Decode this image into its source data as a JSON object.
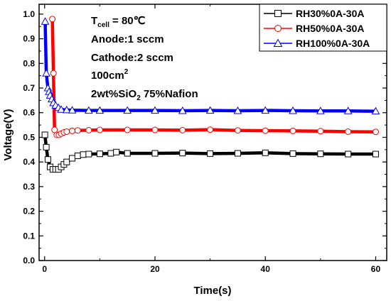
{
  "chart_data": {
    "type": "line",
    "xlabel": "Time(s)",
    "ylabel": "Voltage(V)",
    "xlim": [
      -1,
      62
    ],
    "ylim": [
      0.0,
      1.04
    ],
    "x_ticks": [
      "0",
      "20",
      "40",
      "60"
    ],
    "y_ticks": [
      "0.0",
      "0.1",
      "0.2",
      "0.3",
      "0.4",
      "0.5",
      "0.6",
      "0.7",
      "0.8",
      "0.9",
      "1.0"
    ],
    "grid": false,
    "legend_position": "top-right",
    "annotations": {
      "line1_main": "T",
      "line1_sub": "cell",
      "line1_rest": " = 80℃",
      "line2": "Anode:1 sccm",
      "line3": "Cathode:2 sccm",
      "line4_main": "100cm",
      "line4_sup": "2",
      "line5_a": "2wt%SiO",
      "line5_sub": "2",
      "line5_b": " 75%Nafion"
    },
    "series": [
      {
        "name": "RH30%0A-30A",
        "color": "#000000",
        "marker": "square",
        "x": [
          0.05,
          0.3,
          0.6,
          1.0,
          1.5,
          2.0,
          2.5,
          3.0,
          3.5,
          4.0,
          5.0,
          6.0,
          7.0,
          8.0,
          10.0,
          12.0,
          13.0,
          15.0,
          20.0,
          25.0,
          30.0,
          35.0,
          40.0,
          45.0,
          50.0,
          55.0,
          60.0
        ],
        "y": [
          0.51,
          0.46,
          0.41,
          0.38,
          0.37,
          0.37,
          0.37,
          0.38,
          0.39,
          0.4,
          0.415,
          0.425,
          0.43,
          0.432,
          0.433,
          0.435,
          0.44,
          0.435,
          0.435,
          0.436,
          0.434,
          0.435,
          0.437,
          0.434,
          0.433,
          0.432,
          0.432
        ]
      },
      {
        "name": "RH50%0A-30A",
        "color": "#ff0000",
        "marker": "circle",
        "x": [
          1.4,
          1.6,
          1.8,
          2.2,
          2.6,
          3.0,
          3.5,
          4.0,
          5.0,
          6.0,
          8.0,
          10.0,
          15.0,
          20.0,
          25.0,
          30.0,
          35.0,
          40.0,
          45.0,
          50.0,
          55.0,
          60.0
        ],
        "y": [
          0.98,
          0.76,
          0.53,
          0.51,
          0.51,
          0.515,
          0.52,
          0.523,
          0.526,
          0.528,
          0.529,
          0.53,
          0.53,
          0.53,
          0.529,
          0.531,
          0.528,
          0.527,
          0.526,
          0.525,
          0.523,
          0.522
        ]
      },
      {
        "name": "RH100%0A-30A",
        "color": "#0000ff",
        "marker": "triangle",
        "x": [
          0.1,
          0.3,
          0.6,
          0.8,
          1.0,
          1.3,
          1.6,
          2.0,
          2.5,
          3.0,
          4.0,
          5.0,
          8.0,
          10.0,
          15.0,
          20.0,
          25.0,
          30.0,
          35.0,
          40.0,
          45.0,
          50.0,
          55.0,
          60.0
        ],
        "y": [
          0.97,
          0.76,
          0.7,
          0.685,
          0.67,
          0.655,
          0.64,
          0.63,
          0.62,
          0.613,
          0.611,
          0.61,
          0.609,
          0.609,
          0.609,
          0.609,
          0.608,
          0.609,
          0.608,
          0.609,
          0.608,
          0.607,
          0.607,
          0.606
        ]
      }
    ]
  }
}
